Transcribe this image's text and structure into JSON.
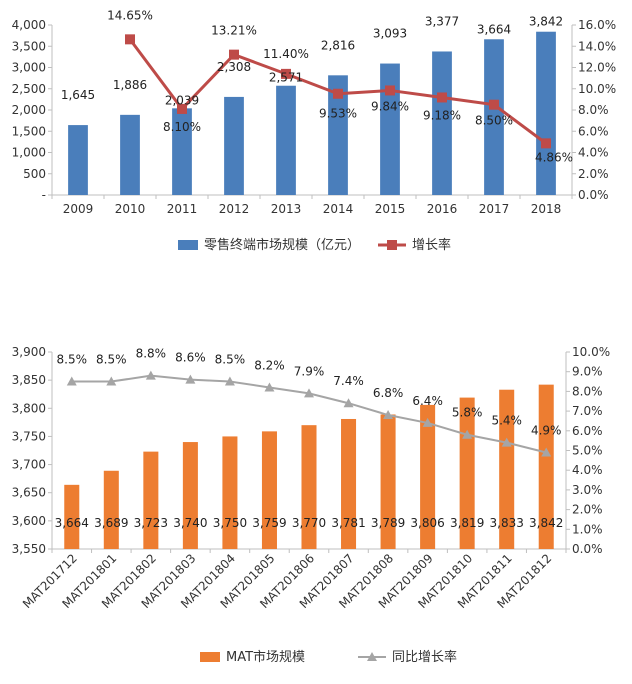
{
  "colors": {
    "bar_blue": "#4a7ebb",
    "line_red": "#be4b48",
    "bar_orange": "#ed7d31",
    "line_gray": "#a5a5a5"
  },
  "chart_data": [
    {
      "type": "bar",
      "categories": [
        "2009",
        "2010",
        "2011",
        "2012",
        "2013",
        "2014",
        "2015",
        "2016",
        "2017",
        "2018"
      ],
      "series": [
        {
          "name": "零售终端市场规模（亿元）",
          "type": "bar",
          "axis": "left",
          "values": [
            1645,
            1886,
            2039,
            2308,
            2571,
            2816,
            3093,
            3377,
            3664,
            3842
          ],
          "labels": [
            "1,645",
            "1,886",
            "2,039",
            "2,308",
            "2,571",
            "2,816",
            "3,093",
            "3,377",
            "3,664",
            "3,842"
          ]
        },
        {
          "name": "增长率",
          "type": "line",
          "axis": "right",
          "values": [
            null,
            14.65,
            8.1,
            13.21,
            11.4,
            9.53,
            9.84,
            9.18,
            8.5,
            4.86
          ],
          "labels": [
            "",
            "14.65%",
            "8.10%",
            "13.21%",
            "11.40%",
            "9.53%",
            "9.84%",
            "9.18%",
            "8.50%",
            "4.86%"
          ]
        }
      ],
      "ylim_left": [
        0,
        4000
      ],
      "yticks_left": [
        "-",
        "500",
        "1,000",
        "1,500",
        "2,000",
        "2,500",
        "3,000",
        "3,500",
        "4,000"
      ],
      "ylim_right": [
        0,
        16
      ],
      "yticks_right": [
        "0.0%",
        "2.0%",
        "4.0%",
        "6.0%",
        "8.0%",
        "10.0%",
        "12.0%",
        "14.0%",
        "16.0%"
      ],
      "grid": false,
      "legend": "bottom"
    },
    {
      "type": "bar",
      "categories": [
        "MAT201712",
        "MAT201801",
        "MAT201802",
        "MAT201803",
        "MAT201804",
        "MAT201805",
        "MAT201806",
        "MAT201807",
        "MAT201808",
        "MAT201809",
        "MAT201810",
        "MAT201811",
        "MAT201812"
      ],
      "series": [
        {
          "name": "MAT市场规模",
          "type": "bar",
          "axis": "left",
          "values": [
            3664,
            3689,
            3723,
            3740,
            3750,
            3759,
            3770,
            3781,
            3789,
            3806,
            3819,
            3833,
            3842
          ],
          "labels": [
            "3,664",
            "3,689",
            "3,723",
            "3,740",
            "3,750",
            "3,759",
            "3,770",
            "3,781",
            "3,789",
            "3,806",
            "3,819",
            "3,833",
            "3,842"
          ]
        },
        {
          "name": "同比增长率",
          "type": "line",
          "axis": "right",
          "values": [
            8.5,
            8.5,
            8.8,
            8.6,
            8.5,
            8.2,
            7.9,
            7.4,
            6.8,
            6.4,
            5.8,
            5.4,
            4.9
          ],
          "labels": [
            "8.5%",
            "8.5%",
            "8.8%",
            "8.6%",
            "8.5%",
            "8.2%",
            "7.9%",
            "7.4%",
            "6.8%",
            "6.4%",
            "5.8%",
            "5.4%",
            "4.9%"
          ]
        }
      ],
      "ylim_left": [
        3550,
        3900
      ],
      "yticks_left": [
        "3,550",
        "3,600",
        "3,650",
        "3,700",
        "3,750",
        "3,800",
        "3,850",
        "3,900"
      ],
      "ylim_right": [
        0,
        10
      ],
      "yticks_right": [
        "0.0%",
        "1.0%",
        "2.0%",
        "3.0%",
        "4.0%",
        "5.0%",
        "6.0%",
        "7.0%",
        "8.0%",
        "9.0%",
        "10.0%"
      ],
      "grid": false,
      "legend": "bottom"
    }
  ]
}
